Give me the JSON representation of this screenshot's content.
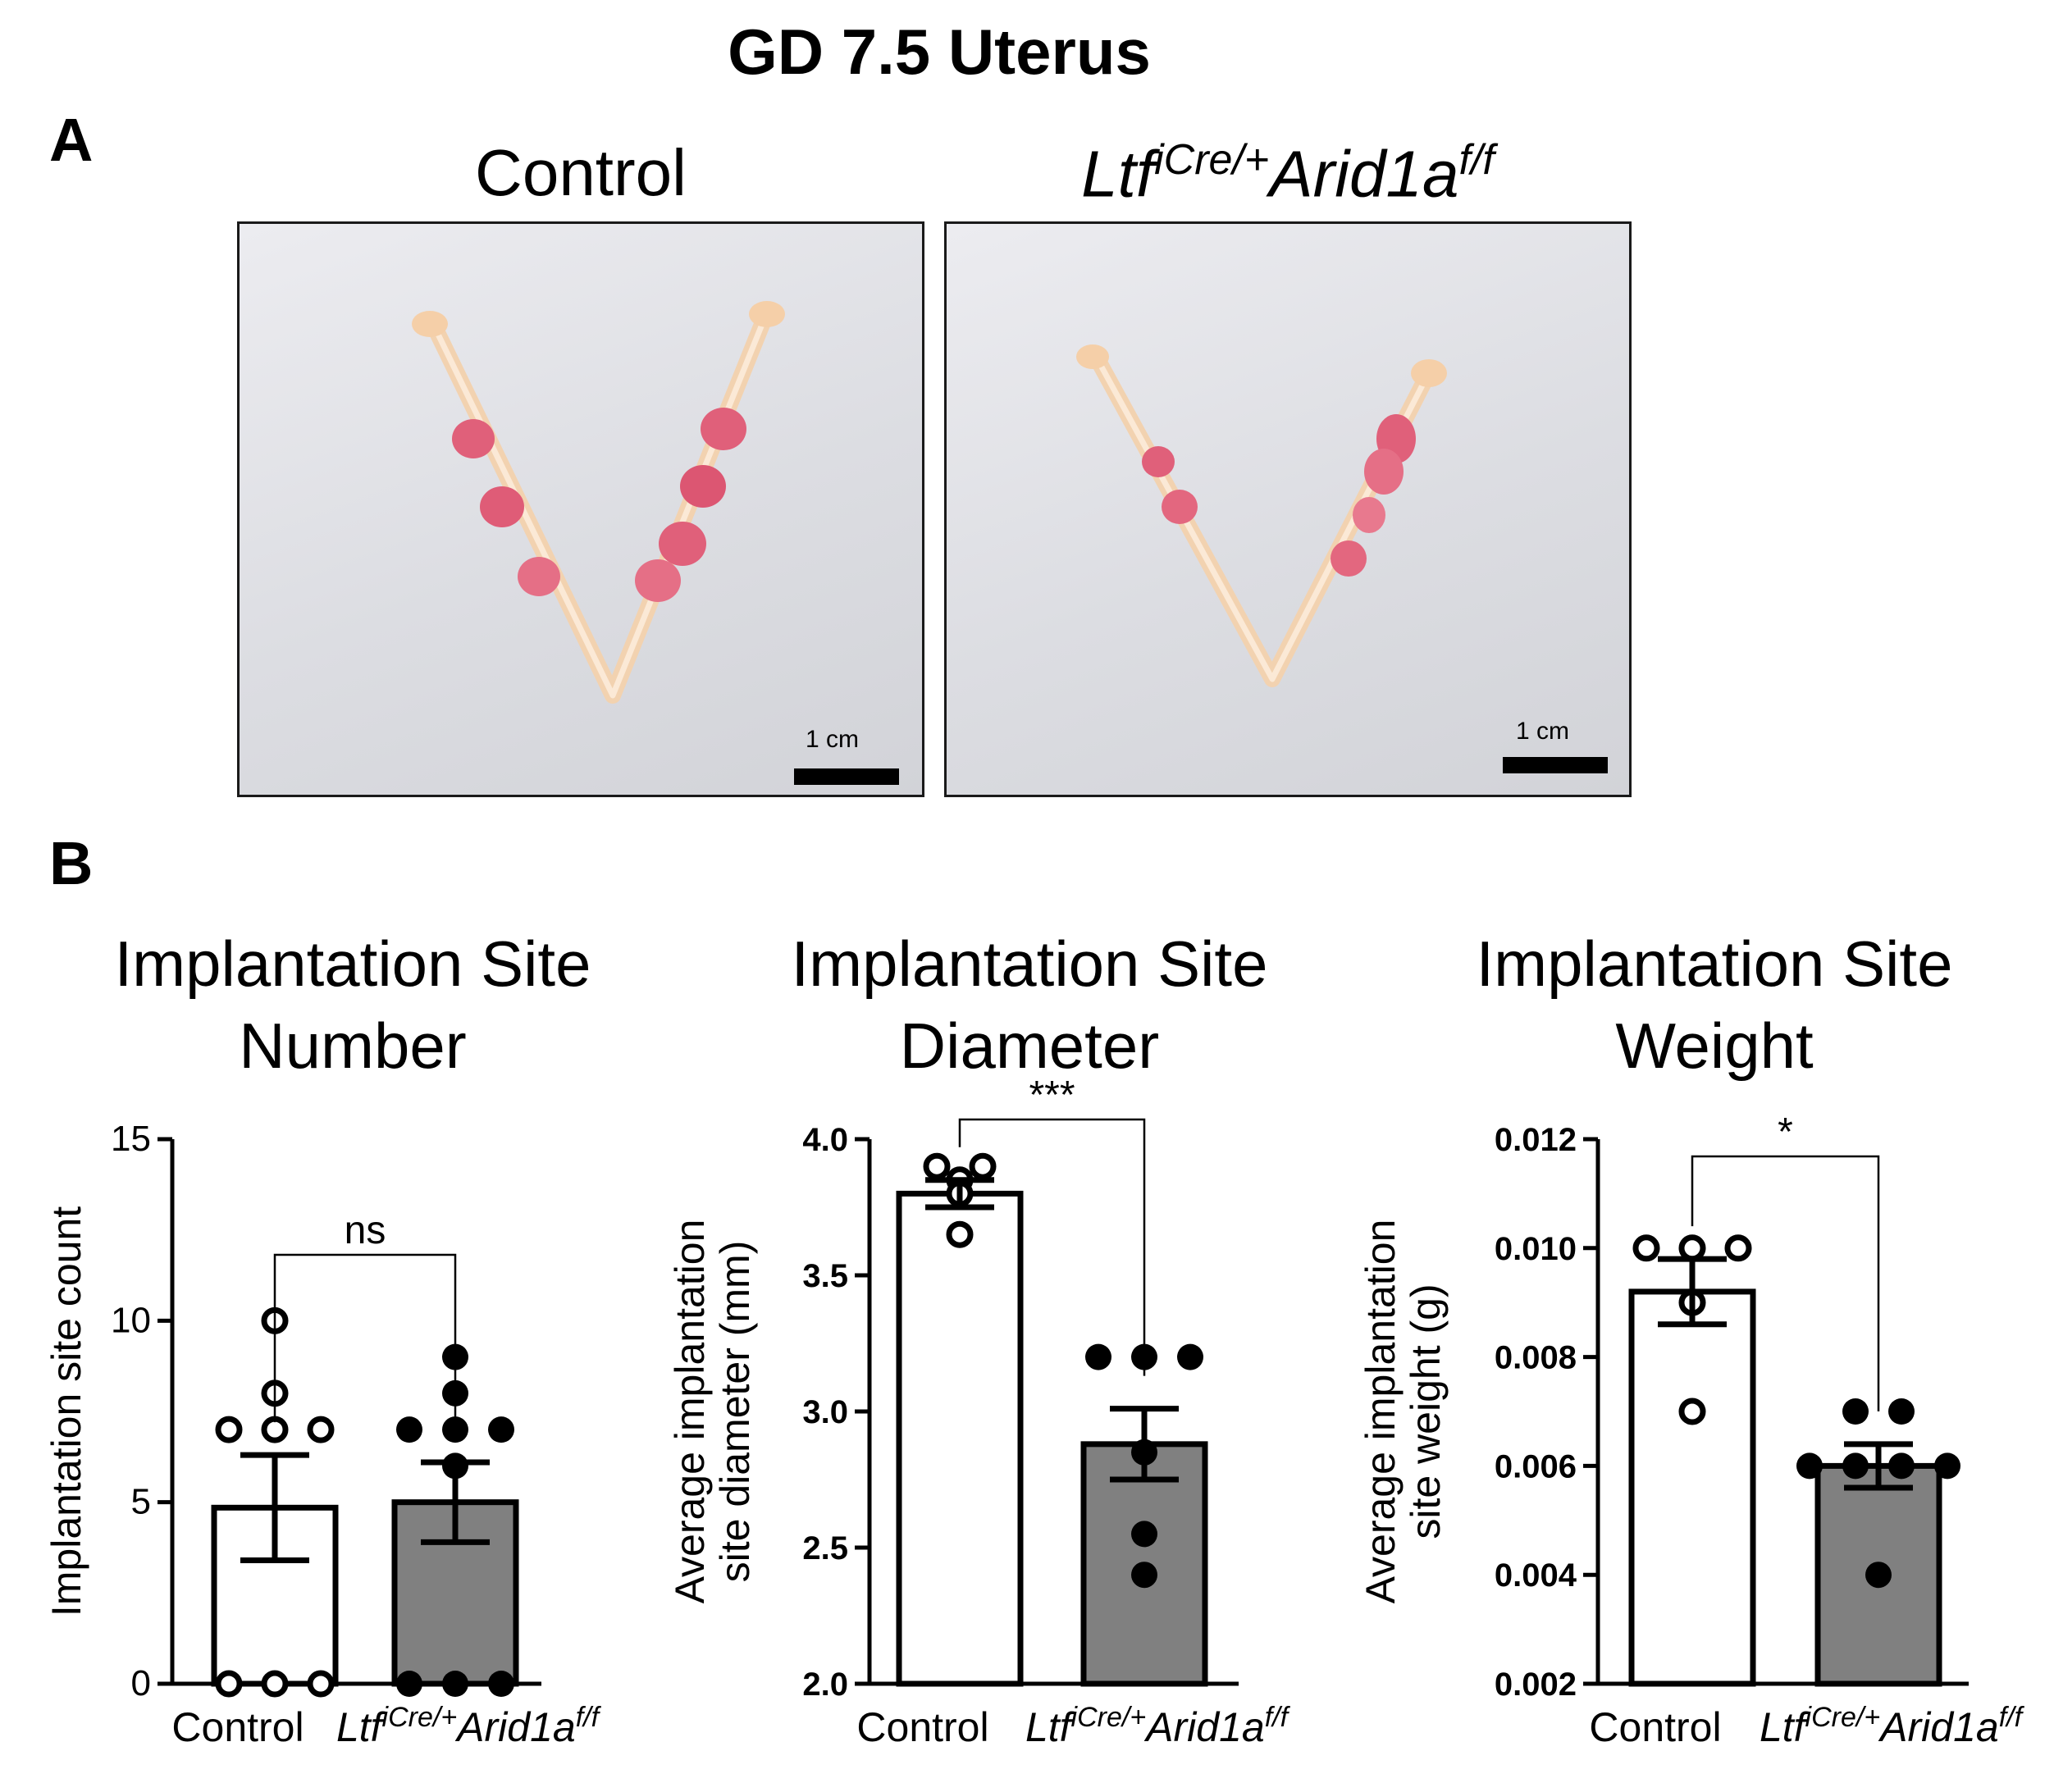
{
  "figure": {
    "title": "GD 7.5 Uterus",
    "panel_a_label": "A",
    "panel_b_label": "B"
  },
  "photos": [
    {
      "title": "Control",
      "scale_bar": "1 cm"
    },
    {
      "title_parts": {
        "base": "Ltf",
        "sup": "iCre/+",
        "gene": "Arid1a",
        "sup2": "f/f"
      },
      "scale_bar": "1 cm"
    }
  ],
  "colors": {
    "control_bar": "#ffffff",
    "mutant_bar": "#808080",
    "axis": "#000000"
  },
  "chart_data": [
    {
      "type": "bar",
      "title_lines": [
        "Implantation Site",
        "Number"
      ],
      "ylabel": "Implantation site count",
      "ylim": [
        0,
        15
      ],
      "yticks": [
        "0",
        "5",
        "10",
        "15"
      ],
      "categories": [
        "Control",
        "LtfiCre/+Arid1af/f"
      ],
      "bars": [
        {
          "mean": 4.85,
          "sem": 1.45,
          "points": [
            10,
            8,
            7,
            7,
            7,
            0,
            0,
            0
          ]
        },
        {
          "mean": 5.0,
          "sem": 1.1,
          "points": [
            9,
            8,
            7,
            7,
            7,
            6,
            0,
            0,
            0
          ]
        }
      ],
      "significance": "ns"
    },
    {
      "type": "bar",
      "title_lines": [
        "Implantation Site",
        "Diameter"
      ],
      "ylabel_lines": [
        "Average implantation",
        "site diameter (mm)"
      ],
      "ylim": [
        2.0,
        4.0
      ],
      "yticks": [
        "2.0",
        "2.5",
        "3.0",
        "3.5",
        "4.0"
      ],
      "categories": [
        "Control",
        "LtfiCre/+Arid1af/f"
      ],
      "bars": [
        {
          "mean": 3.8,
          "sem": 0.05,
          "points": [
            3.9,
            3.9,
            3.85,
            3.8,
            3.65
          ]
        },
        {
          "mean": 2.88,
          "sem": 0.13,
          "points": [
            3.2,
            3.2,
            3.2,
            2.85,
            2.55,
            2.4
          ]
        }
      ],
      "significance": "***"
    },
    {
      "type": "bar",
      "title_lines": [
        "Implantation Site",
        "Weight"
      ],
      "ylabel_lines": [
        "Average implantation",
        "site weight (g)"
      ],
      "ylim": [
        0.002,
        0.012
      ],
      "yticks": [
        "0.002",
        "0.004",
        "0.006",
        "0.008",
        "0.010",
        "0.012"
      ],
      "categories": [
        "Control",
        "LtfiCre/+Arid1af/f"
      ],
      "bars": [
        {
          "mean": 0.0092,
          "sem": 0.0006,
          "points": [
            0.01,
            0.01,
            0.01,
            0.009,
            0.007
          ]
        },
        {
          "mean": 0.006,
          "sem": 0.0004,
          "points": [
            0.007,
            0.007,
            0.006,
            0.006,
            0.006,
            0.006,
            0.004
          ]
        }
      ],
      "significance": "*"
    }
  ]
}
